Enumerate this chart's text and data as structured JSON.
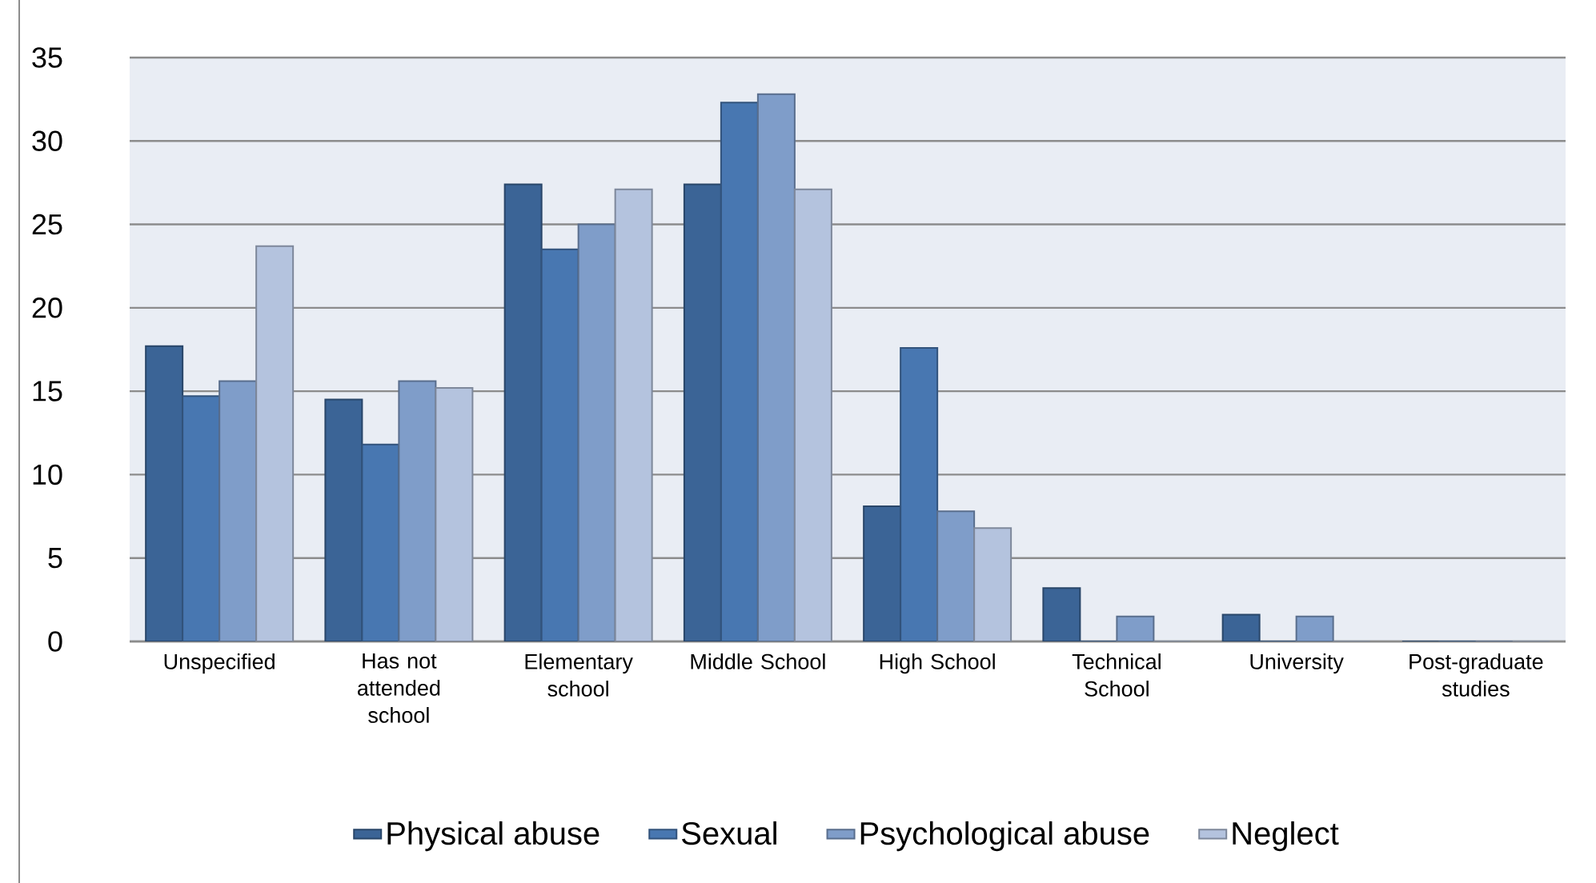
{
  "chart_data": {
    "type": "bar",
    "categories": [
      "Unspecified",
      "Has not attended school",
      "Elementary school",
      "Middle School",
      "High School",
      "Technical School",
      "University",
      "Post-graduate studies"
    ],
    "series": [
      {
        "name": "Physical abuse",
        "color": "#3b6496",
        "values": [
          17.7,
          14.5,
          27.4,
          27.4,
          8.1,
          3.2,
          1.6,
          0
        ]
      },
      {
        "name": "Sexual",
        "color": "#4877b1",
        "values": [
          14.7,
          11.8,
          23.5,
          32.3,
          17.6,
          0,
          0,
          0
        ]
      },
      {
        "name": "Psychological abuse",
        "color": "#7f9dc9",
        "values": [
          15.6,
          15.6,
          25.0,
          32.8,
          7.8,
          1.5,
          1.5,
          0
        ]
      },
      {
        "name": "Neglect",
        "color": "#b4c3de",
        "values": [
          23.7,
          15.2,
          27.1,
          27.1,
          6.8,
          0,
          0,
          0
        ]
      }
    ],
    "ylim": [
      0,
      35
    ],
    "yticks": [
      0,
      5,
      10,
      15,
      20,
      25,
      30,
      35
    ],
    "grid": "y",
    "legend": "bottom"
  }
}
